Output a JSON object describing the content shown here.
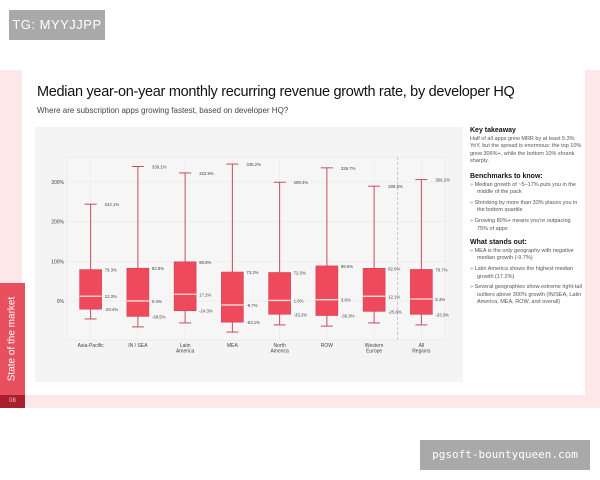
{
  "watermarks": {
    "top": "TG: MYYJJPP",
    "bottom": "pgsoft-bountyqueen.com"
  },
  "sidebar": {
    "section": "State of the market",
    "page": "08"
  },
  "colors": {
    "box": "#ee4a5c",
    "accent": "#e8505f",
    "median": "#fbe3d6"
  },
  "header": {
    "title": "Median year-on-year monthly recurring revenue growth rate, by developer HQ",
    "subtitle": "Where are subscription apps growing fastest, based on developer HQ?"
  },
  "chart_data": {
    "type": "boxplot",
    "title": "",
    "xlabel": "",
    "ylabel": "",
    "ylim": [
      -98,
      363
    ],
    "yticks": [
      "0%",
      "100%",
      "200%",
      "300%"
    ],
    "ytick_values": [
      0,
      100,
      200,
      300
    ],
    "grid": true,
    "separator_before": "All Regions",
    "categories": [
      "Asia-Pacific",
      "IN / SEA",
      "Latin America",
      "MEA",
      "North America",
      "ROW",
      "Western Europe",
      "All Regions"
    ],
    "whisker_high": [
      244.1,
      339.1,
      322.9,
      345.2,
      299.4,
      335.7,
      289.5,
      306.2
    ],
    "whisker_high_labels": [
      "244.1%",
      "339.1%",
      "322.9%",
      "345.2%",
      "299.4%",
      "335.7%",
      "289.5%",
      "306.2%"
    ],
    "q3": [
      79.3,
      82.8,
      98.8,
      73.2,
      72.0,
      88.6,
      82.6,
      79.7
    ],
    "q3_labels": [
      "79.3%",
      "82.8%",
      "98.8%",
      "73.2%",
      "72.0%",
      "88.6%",
      "82.6%",
      "79.7%"
    ],
    "median": [
      12.3,
      0.4,
      17.2,
      -9.7,
      1.6,
      3.6,
      12.1,
      5.3
    ],
    "median_labels": [
      "12.3%",
      "0.4%",
      "17.2%",
      "-9.7%",
      "1.6%",
      "3.6%",
      "12.1%",
      "5.3%"
    ],
    "q1": [
      -20.4,
      -38.5,
      -24.3,
      -53.1,
      -33.2,
      -36.3,
      -25.8,
      -33.3
    ],
    "q1_labels": [
      "-20.4%",
      "-38.5%",
      "-24.3%",
      "-53.1%",
      "-33.2%",
      "-36.3%",
      "-25.8%",
      "-33.3%"
    ],
    "whisker_low": [
      -45,
      -65,
      -55,
      -78,
      -60,
      -63,
      -55,
      -60
    ]
  },
  "notes": {
    "key_title": "Key takeaway",
    "key_text": "Half of all apps grew MRR by at least 5.3% YoY, but the spread is enormous: the top 10% grew 306%+, while the bottom 10% shrank sharply.",
    "bench_title": "Benchmarks to know:",
    "bench": [
      "Median growth of ~5–17% puts you in the middle of the pack",
      "Shrinking by more than 33% places you in the bottom quartile",
      "Growing 80%+ means you're outpacing 75% of apps"
    ],
    "stand_title": "What stands out:",
    "stand": [
      "MEA is the only geography with negative median growth (-9.7%)",
      "Latin America shows the highest median growth (17.2%)",
      "Several geographies show extreme right-tail outliers above 300% growth (IN/SEA, Latin America, MEA, ROW, and overall)"
    ]
  }
}
